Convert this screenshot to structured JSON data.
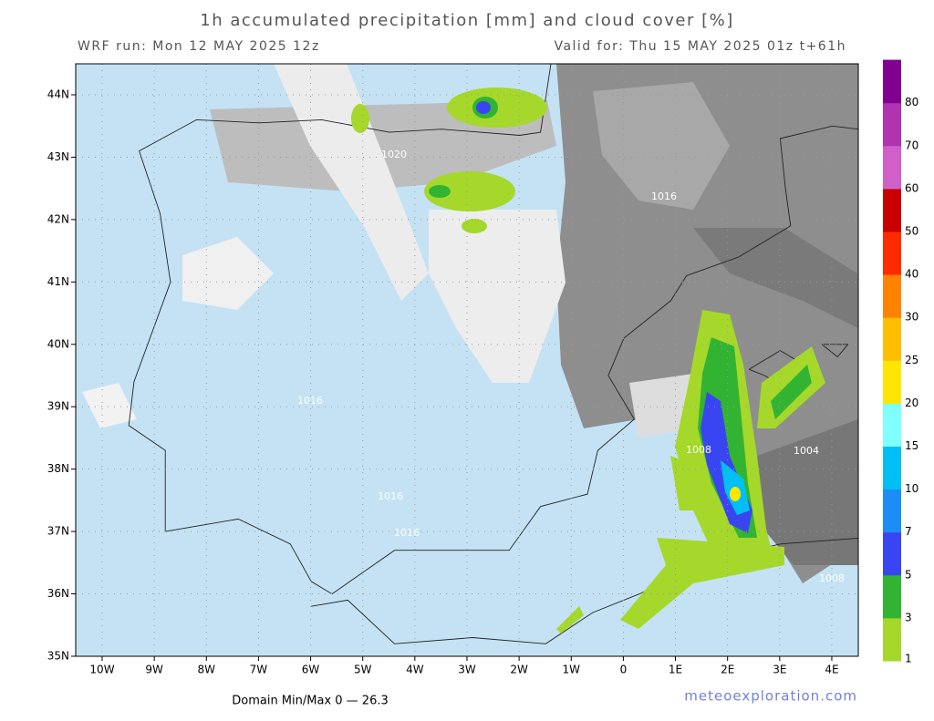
{
  "header": {
    "title": "1h accumulated precipitation [mm] and cloud cover [%]",
    "run": "WRF run: Mon 12 MAY 2025 12z",
    "valid": "Valid for: Thu 15 MAY 2025 01z  t+61h"
  },
  "map": {
    "lat_labels": [
      "44N",
      "43N",
      "42N",
      "41N",
      "40N",
      "39N",
      "38N",
      "37N",
      "36N",
      "35N"
    ],
    "lon_labels": [
      "10W",
      "9W",
      "8W",
      "7W",
      "6W",
      "5W",
      "4W",
      "3W",
      "2W",
      "1W",
      "0",
      "1E",
      "2E",
      "3E",
      "4E"
    ],
    "isobar_labels": [
      "1020",
      "1016",
      "1016",
      "1008",
      "1004",
      "1016",
      "1016",
      "1008"
    ]
  },
  "colorbar": {
    "labels": [
      "1",
      "3",
      "5",
      "7",
      "10",
      "15",
      "20",
      "25",
      "30",
      "40",
      "50",
      "60",
      "70",
      "80"
    ],
    "colors": [
      "#a5d82a",
      "#32b432",
      "#3a45f2",
      "#1e8cf5",
      "#00bff5",
      "#80ffff",
      "#ffe600",
      "#ffbe00",
      "#ff8200",
      "#ff2a00",
      "#c80000",
      "#d060c8",
      "#b033b0",
      "#800090"
    ]
  },
  "footer": {
    "minmax": "Domain Min/Max 0 — 26.3",
    "site": "meteoexploration.com"
  }
}
